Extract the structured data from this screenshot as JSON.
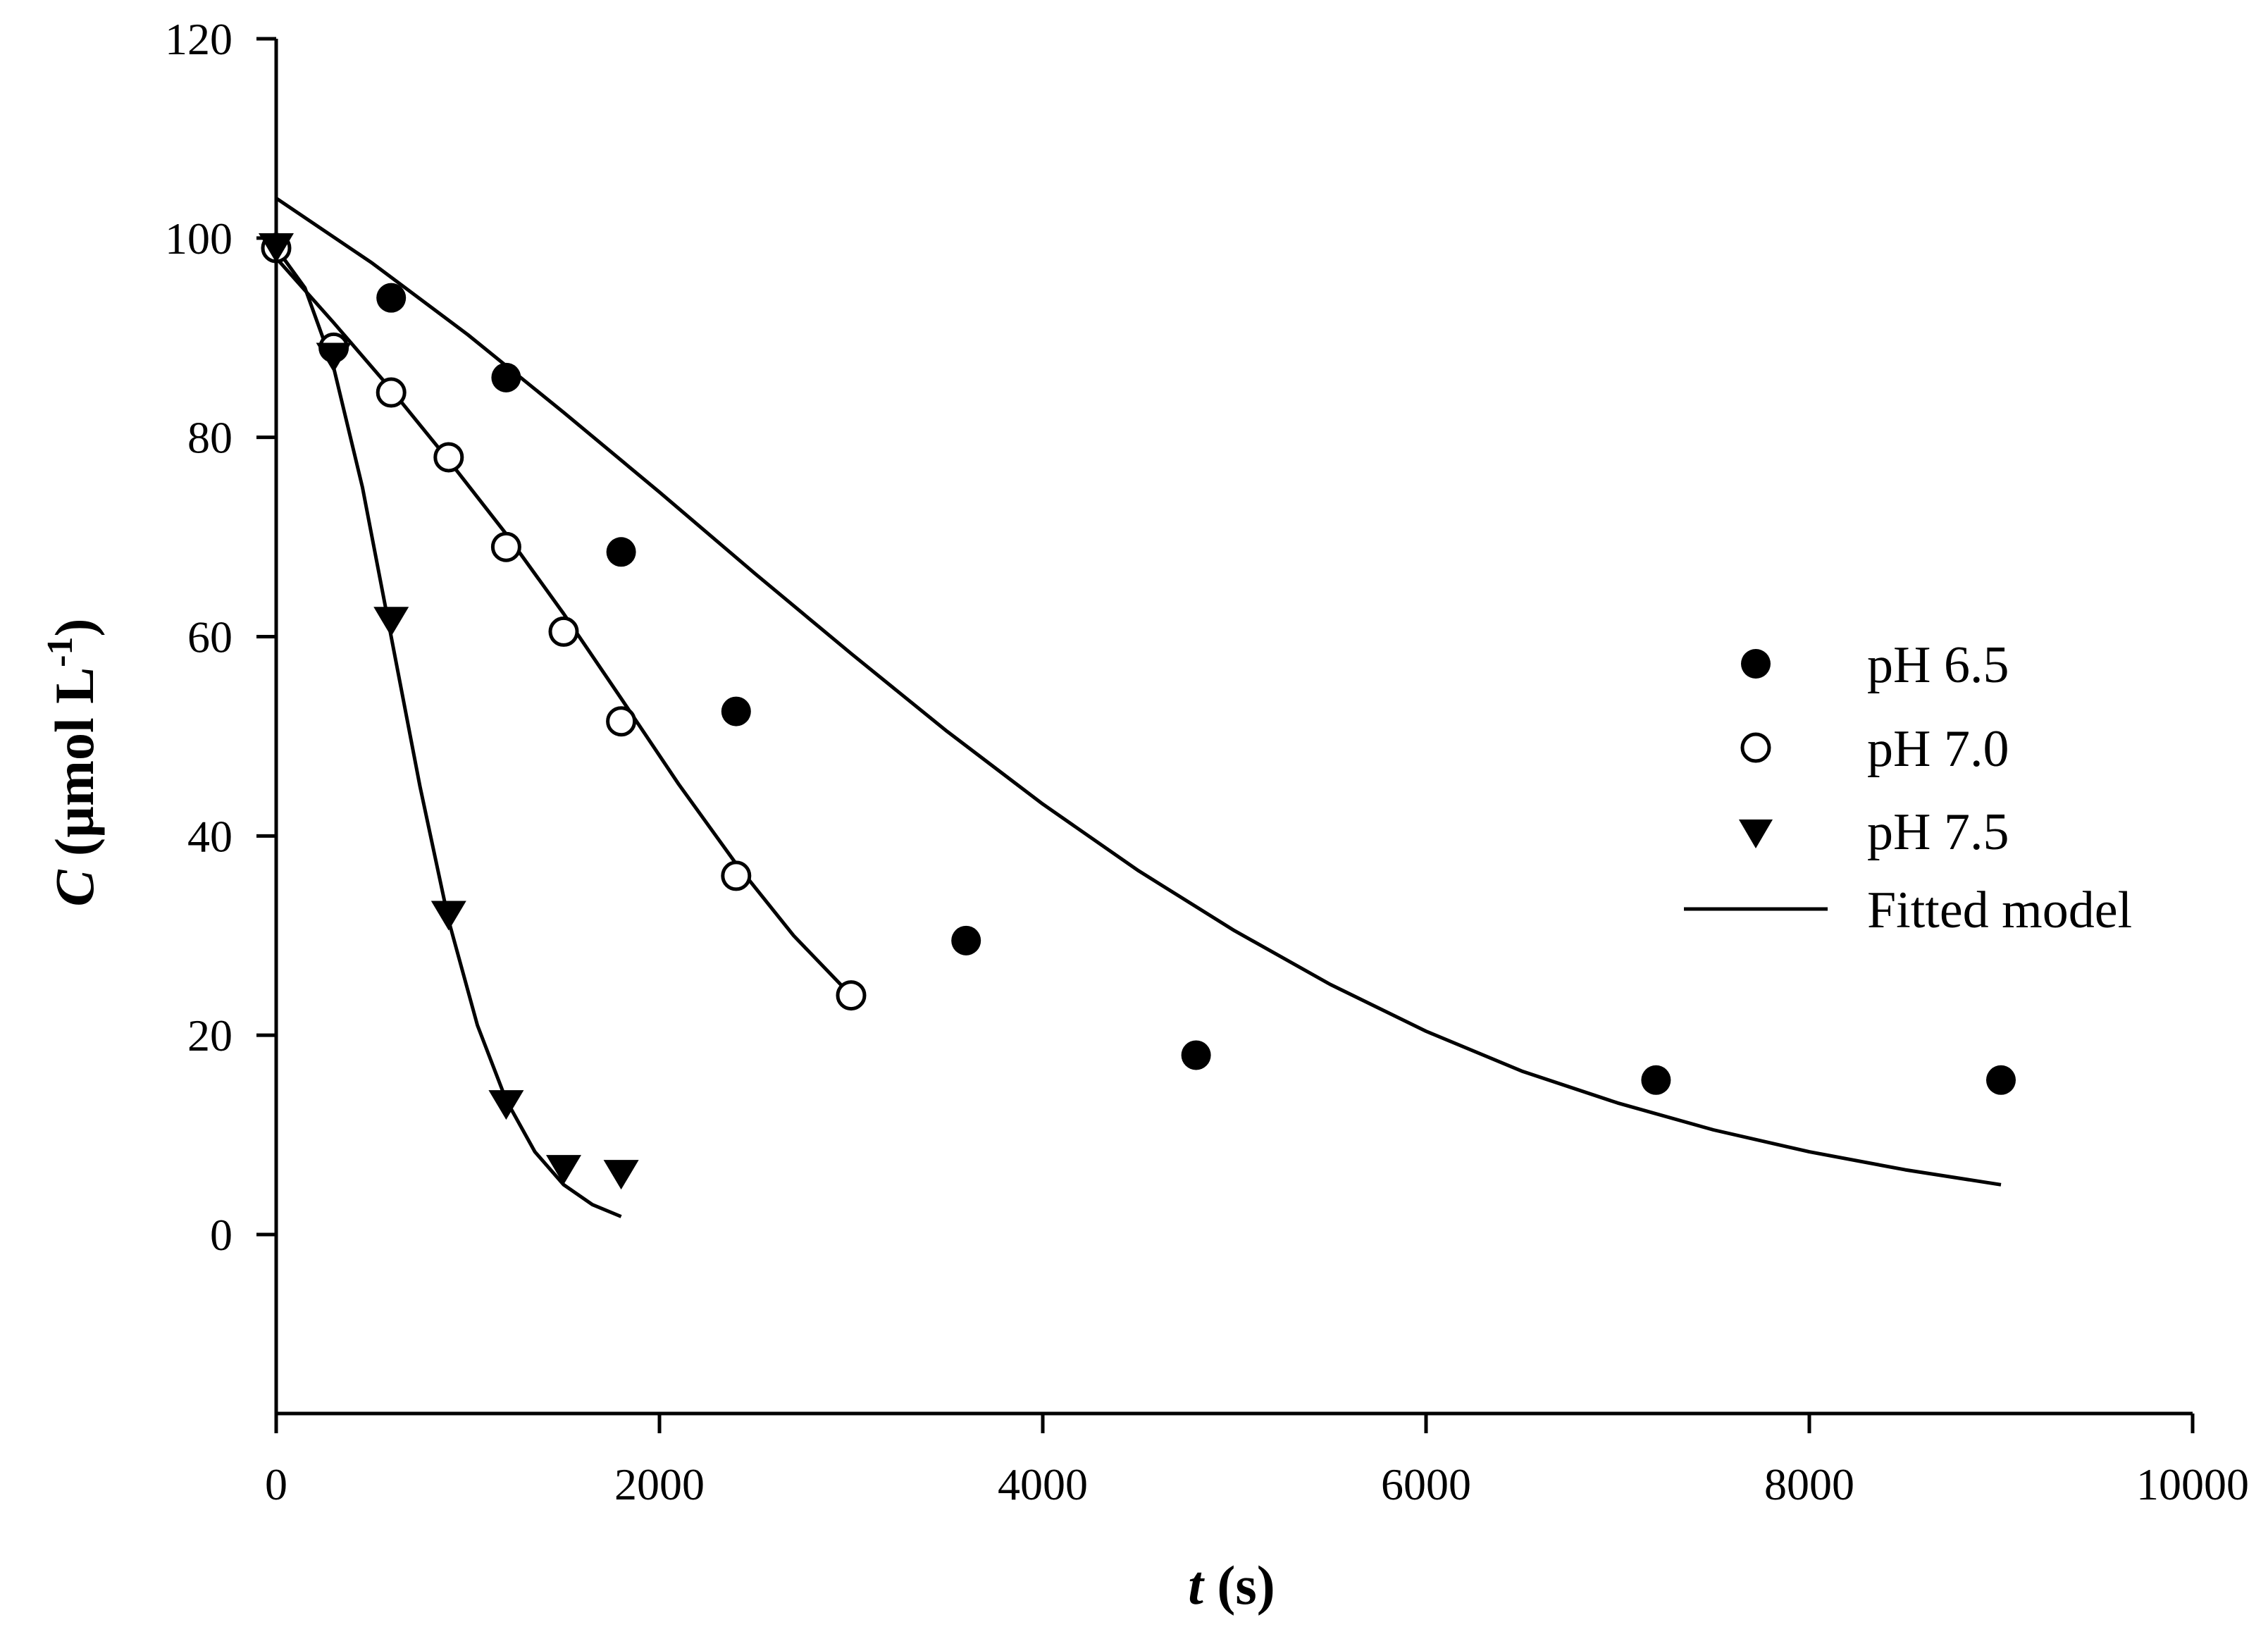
{
  "chart_data": {
    "type": "scatter",
    "title": "",
    "xlabel": {
      "italic": "t",
      "rest": " (s)"
    },
    "ylabel": {
      "italic": "C",
      "rest": " (µmol L",
      "sup": "-1",
      "close": ")"
    },
    "xlim": [
      0,
      10000
    ],
    "ylim": [
      -18,
      120
    ],
    "xticks": [
      0,
      2000,
      4000,
      6000,
      8000,
      10000
    ],
    "yticks": [
      0,
      20,
      40,
      60,
      80,
      100,
      120
    ],
    "xtick_labels": [
      "0",
      "2000",
      "4000",
      "6000",
      "8000",
      "10000"
    ],
    "ytick_labels": [
      "0",
      "20",
      "40",
      "60",
      "80",
      "100",
      "120"
    ],
    "grid": false,
    "legend_position": "right",
    "series": [
      {
        "name": "pH 6.5",
        "marker": "filled-circle",
        "x": [
          0,
          600,
          1200,
          1800,
          2400,
          3600,
          4800,
          7200,
          9000
        ],
        "y": [
          99,
          94,
          86,
          68.5,
          52.5,
          29.5,
          18,
          15.5,
          15.5
        ]
      },
      {
        "name": "pH 7.0",
        "marker": "open-circle",
        "x": [
          0,
          300,
          600,
          900,
          1200,
          1500,
          1800,
          2400,
          3000
        ],
        "y": [
          99,
          89,
          84.5,
          78,
          69,
          60.5,
          51.5,
          36,
          24
        ]
      },
      {
        "name": "pH 7.5",
        "marker": "filled-triangle-down",
        "x": [
          0,
          300,
          600,
          900,
          1200,
          1500,
          1800
        ],
        "y": [
          99,
          88,
          61.5,
          32,
          13,
          6.5,
          6
        ]
      }
    ],
    "fitted_model": {
      "name": "Fitted model",
      "curves": [
        {
          "for": "pH 6.5",
          "x": [
            0,
            500,
            1000,
            1500,
            2000,
            2500,
            3000,
            3500,
            4000,
            4500,
            5000,
            5500,
            6000,
            6500,
            7000,
            7500,
            8000,
            8500,
            9000
          ],
          "y": [
            104,
            97.5,
            90.3,
            82.5,
            74.5,
            66.3,
            58.3,
            50.5,
            43.2,
            36.5,
            30.5,
            25.1,
            20.4,
            16.4,
            13.2,
            10.5,
            8.3,
            6.5,
            5.0
          ]
        },
        {
          "for": "pH 7.0",
          "x": [
            0,
            300,
            600,
            900,
            1200,
            1500,
            1800,
            2100,
            2400,
            2700,
            3000
          ],
          "y": [
            98,
            91.5,
            84.8,
            77.7,
            70.3,
            62.3,
            53.8,
            45.2,
            37.2,
            30.0,
            24.0
          ]
        },
        {
          "for": "pH 7.5",
          "x": [
            0,
            150,
            300,
            450,
            600,
            750,
            900,
            1050,
            1200,
            1350,
            1500,
            1650,
            1800
          ],
          "y": [
            99,
            95,
            87,
            75,
            60,
            45,
            31.5,
            21,
            13.5,
            8.3,
            5.0,
            3.0,
            1.8
          ]
        }
      ]
    }
  }
}
